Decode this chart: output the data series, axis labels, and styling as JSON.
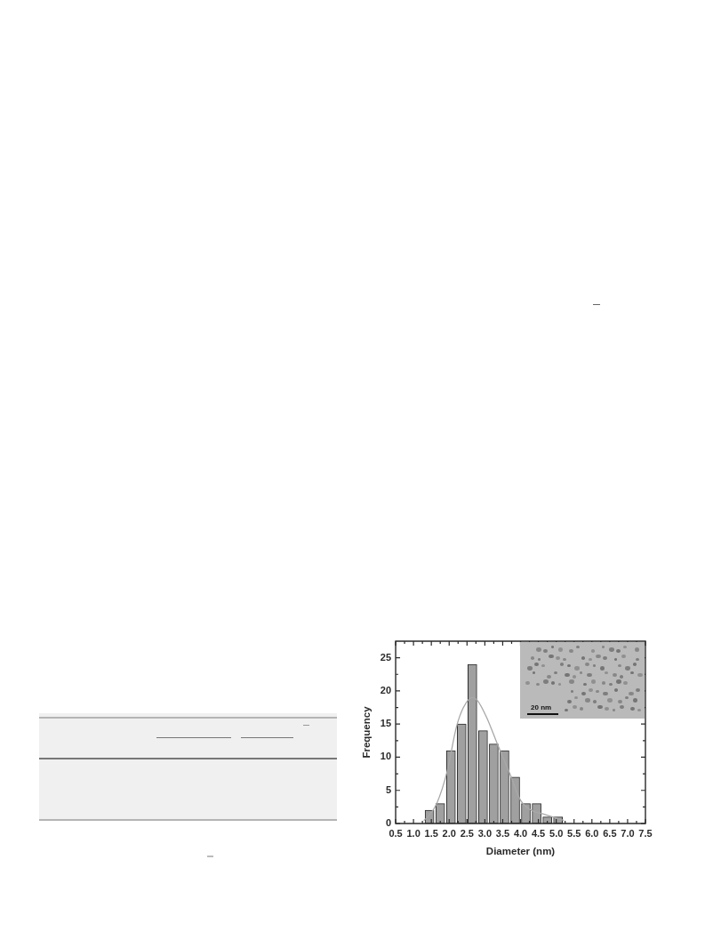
{
  "chart_data": {
    "type": "histogram",
    "xlabel": "Diameter (nm)",
    "ylabel": "Frequency",
    "series": [
      {
        "bins": [
          1.3,
          1.6,
          1.9,
          2.2,
          2.5,
          2.8,
          3.1,
          3.4,
          3.7,
          4.0,
          4.3,
          4.6,
          4.9,
          5.2
        ],
        "values": [
          2,
          3,
          11,
          15,
          24,
          14,
          12,
          11,
          7,
          3,
          3,
          1,
          1
        ],
        "color": "#a0a0a0"
      },
      {
        "type": "line",
        "x": [
          1.3,
          1.4,
          1.65,
          1.95,
          2.2,
          2.4,
          2.65,
          2.8,
          3.05,
          3.35,
          3.7,
          4.0,
          4.3,
          4.6,
          4.9,
          5.2
        ],
        "values": [
          0.5,
          1,
          3,
          8,
          14.5,
          17.5,
          19,
          18.5,
          16,
          12,
          7.5,
          3.5,
          2,
          1.5,
          1,
          0.5
        ],
        "color": "#a8a8a8",
        "marker": "none"
      }
    ],
    "xlim": [
      0.5,
      7.5
    ],
    "xticks": [
      0.5,
      {
        "value": 0.75,
        "label": null
      },
      {
        "value": 1,
        "label": "1.0"
      },
      {
        "value": 1.25,
        "label": null
      },
      1.5,
      {
        "value": 1.75,
        "label": null
      },
      {
        "value": 2,
        "label": "2.0"
      },
      {
        "value": 2.25,
        "label": null
      },
      2.5,
      {
        "value": 2.75,
        "label": null
      },
      {
        "value": 3,
        "label": "3.0"
      },
      {
        "value": 3.25,
        "label": null
      },
      3.5,
      {
        "value": 3.75,
        "label": null
      },
      {
        "value": 4,
        "label": "4.0"
      },
      {
        "value": 4.25,
        "label": null
      },
      4.5,
      {
        "value": 4.75,
        "label": null
      },
      {
        "value": 5,
        "label": "5.0"
      },
      {
        "value": 5.25,
        "label": null
      },
      5.5,
      {
        "value": 5.75,
        "label": null
      },
      {
        "value": 6,
        "label": "6.0"
      },
      {
        "value": 6.25,
        "label": null
      },
      6.5,
      {
        "value": 6.75,
        "label": null
      },
      {
        "value": 7,
        "label": "7.0"
      },
      {
        "value": 7.25,
        "label": null
      },
      7.5
    ],
    "ylim": [
      0,
      27.5
    ],
    "yticks": [
      0,
      {
        "value": 2.5,
        "label": null
      },
      5,
      {
        "value": 7.5,
        "label": null
      },
      10,
      {
        "value": 12.5,
        "label": null
      },
      15,
      {
        "value": 17.5,
        "label": null
      },
      20,
      {
        "value": 22.5,
        "label": null
      },
      25
    ],
    "grid": false,
    "legend": false,
    "annotations": [
      "20 nm"
    ]
  }
}
